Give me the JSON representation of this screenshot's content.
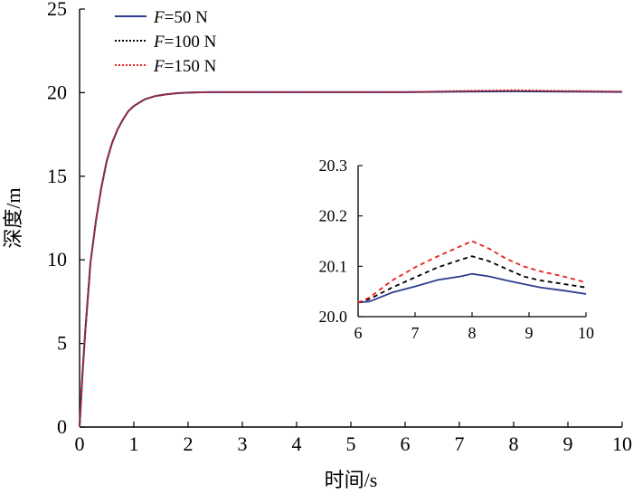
{
  "chart_data": [
    {
      "type": "line",
      "xlabel": "时间/s",
      "ylabel": "深度/m",
      "xlim": [
        0,
        10
      ],
      "ylim": [
        0,
        25
      ],
      "xticks": [
        0,
        1,
        2,
        3,
        4,
        5,
        6,
        7,
        8,
        9,
        10
      ],
      "yticks": [
        0,
        5,
        10,
        15,
        20,
        25
      ],
      "grid": false,
      "legend_position": "top-left",
      "series": [
        {
          "name": "F=50 N",
          "legend_var": "F",
          "legend_rest": "=50 N",
          "color": "#2e3d8f",
          "style": "solid",
          "x": [
            0,
            0.05,
            0.1,
            0.2,
            0.3,
            0.4,
            0.5,
            0.6,
            0.7,
            0.8,
            0.9,
            1.0,
            1.2,
            1.4,
            1.6,
            1.8,
            2.0,
            2.2,
            2.5,
            3,
            4,
            5,
            6,
            7,
            8,
            9,
            10
          ],
          "y": [
            0,
            3,
            5.5,
            9.8,
            12.3,
            14.3,
            15.9,
            17.0,
            17.8,
            18.4,
            18.9,
            19.2,
            19.6,
            19.8,
            19.9,
            19.97,
            20.0,
            20.02,
            20.03,
            20.03,
            20.03,
            20.03,
            20.03,
            20.06,
            20.085,
            20.065,
            20.045
          ]
        },
        {
          "name": "F=100 N",
          "legend_var": "F",
          "legend_rest": "=100 N",
          "color": "#000000",
          "style": "dotted",
          "x": [
            0,
            0.05,
            0.1,
            0.2,
            0.3,
            0.4,
            0.5,
            0.6,
            0.7,
            0.8,
            0.9,
            1.0,
            1.2,
            1.4,
            1.6,
            1.8,
            2.0,
            2.2,
            2.5,
            3,
            4,
            5,
            6,
            7,
            8,
            9,
            10
          ],
          "y": [
            0,
            3,
            5.5,
            9.8,
            12.3,
            14.3,
            15.9,
            17.0,
            17.8,
            18.4,
            18.9,
            19.2,
            19.6,
            19.8,
            19.9,
            19.97,
            20.0,
            20.02,
            20.03,
            20.03,
            20.03,
            20.03,
            20.03,
            20.08,
            20.12,
            20.085,
            20.06
          ]
        },
        {
          "name": "F=150 N",
          "legend_var": "F",
          "legend_rest": "=150 N",
          "color": "#e8211c",
          "style": "dotted",
          "x": [
            0,
            0.05,
            0.1,
            0.2,
            0.3,
            0.4,
            0.5,
            0.6,
            0.7,
            0.8,
            0.9,
            1.0,
            1.2,
            1.4,
            1.6,
            1.8,
            2.0,
            2.2,
            2.5,
            3,
            4,
            5,
            6,
            7,
            8,
            9,
            10
          ],
          "y": [
            0,
            3,
            5.5,
            9.8,
            12.3,
            14.3,
            15.9,
            17.0,
            17.8,
            18.4,
            18.9,
            19.2,
            19.6,
            19.8,
            19.9,
            19.97,
            20.0,
            20.02,
            20.03,
            20.03,
            20.03,
            20.03,
            20.03,
            20.1,
            20.15,
            20.1,
            20.07
          ]
        }
      ]
    },
    {
      "type": "line",
      "xlim": [
        6,
        10
      ],
      "ylim": [
        20.0,
        20.3
      ],
      "xticks": [
        6,
        7,
        8,
        9,
        10
      ],
      "yticks": [
        "20.0",
        "20.1",
        "20.2",
        "20.3"
      ],
      "grid": false,
      "series": [
        {
          "color": "#2e3d8f",
          "style": "solid",
          "x": [
            6,
            6.2,
            6.6,
            7.0,
            7.4,
            7.8,
            8.0,
            8.3,
            8.6,
            8.9,
            9.2,
            9.6,
            10
          ],
          "y": [
            20.028,
            20.03,
            20.048,
            20.06,
            20.073,
            20.08,
            20.085,
            20.08,
            20.072,
            20.065,
            20.058,
            20.052,
            20.045
          ]
        },
        {
          "color": "#000000",
          "style": "dashed",
          "x": [
            6,
            6.2,
            6.6,
            7.0,
            7.4,
            7.8,
            8.0,
            8.3,
            8.6,
            8.9,
            9.2,
            9.6,
            10
          ],
          "y": [
            20.028,
            20.035,
            20.058,
            20.078,
            20.098,
            20.113,
            20.12,
            20.11,
            20.095,
            20.08,
            20.072,
            20.065,
            20.058
          ]
        },
        {
          "color": "#e8211c",
          "style": "dashed",
          "x": [
            6,
            6.2,
            6.6,
            7.0,
            7.4,
            7.8,
            8.0,
            8.3,
            8.6,
            8.9,
            9.2,
            9.6,
            10
          ],
          "y": [
            20.028,
            20.038,
            20.072,
            20.098,
            20.12,
            20.14,
            20.15,
            20.135,
            20.115,
            20.1,
            20.09,
            20.08,
            20.068
          ]
        }
      ]
    }
  ]
}
